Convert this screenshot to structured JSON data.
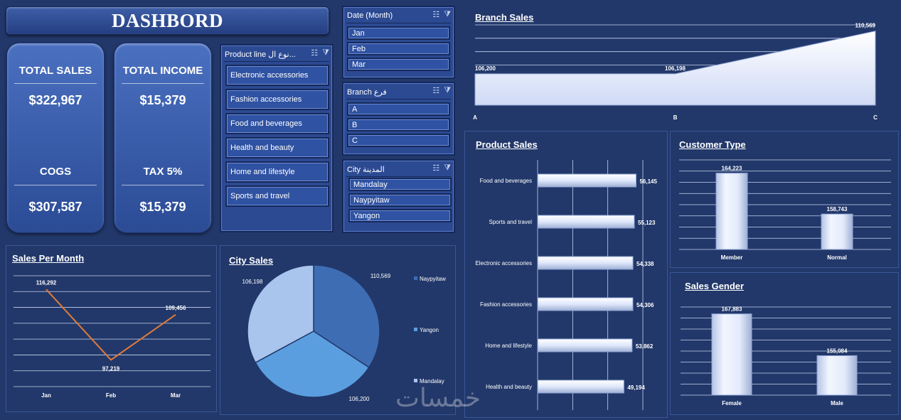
{
  "header": {
    "title": "DASHBORD"
  },
  "kpis": {
    "total_sales_label": "TOTAL SALES",
    "total_sales_value": "$322,967",
    "total_income_label": "TOTAL INCOME",
    "total_income_value": "$15,379",
    "cogs_label": "COGS",
    "cogs_value": "$307,587",
    "tax_label": "TAX 5%",
    "tax_value": "$15,379"
  },
  "slicers": {
    "product_line": {
      "header": "Product line نوع ال...",
      "items": [
        "Electronic accessories",
        "Fashion accessories",
        "Food and beverages",
        "Health and beauty",
        "Home and lifestyle",
        "Sports and travel"
      ]
    },
    "date": {
      "header": "Date (Month)",
      "items": [
        "Jan",
        "Feb",
        "Mar"
      ]
    },
    "branch": {
      "header": "Branch فرع",
      "items": [
        "A",
        "B",
        "C"
      ]
    },
    "city": {
      "header": "City المدينة",
      "items": [
        "Mandalay",
        "Naypyitaw",
        "Yangon"
      ]
    }
  },
  "icons": {
    "multiselect": "multi-select-icon",
    "clear_filter": "clear-filter-icon"
  },
  "colors": {
    "background": "#22386a",
    "bar_fill": "#dfe7fb",
    "line": "#e07b39",
    "pie_naypyitaw": "#3e6db4",
    "pie_yangon": "#5b9ee0",
    "pie_mandalay": "#a9c5ee"
  },
  "watermark": "خمسات",
  "chart_data": [
    {
      "id": "branch_sales",
      "type": "area",
      "title": "Branch Sales",
      "categories": [
        "A",
        "B",
        "C"
      ],
      "values": [
        106200,
        106198,
        110569
      ],
      "value_labels": [
        "106,200",
        "106,198",
        "110,569"
      ],
      "grid": true
    },
    {
      "id": "product_sales",
      "type": "bar",
      "orientation": "horizontal",
      "title": "Product Sales",
      "categories": [
        "Food and beverages",
        "Sports and travel",
        "Electronic accessories",
        "Fashion accessories",
        "Home and lifestyle",
        "Health and beauty"
      ],
      "values": [
        56145,
        55123,
        54338,
        54306,
        53862,
        49194
      ],
      "value_labels": [
        "56,145",
        "55,123",
        "54,338",
        "54,306",
        "53,862",
        "49,194"
      ],
      "grid": true
    },
    {
      "id": "customer_type",
      "type": "bar",
      "title": "Customer Type",
      "categories": [
        "Member",
        "Normal"
      ],
      "values": [
        164223,
        158743
      ],
      "value_labels": [
        "164,223",
        "158,743"
      ],
      "grid": true
    },
    {
      "id": "sales_per_month",
      "type": "line",
      "title": "Sales Per Month",
      "categories": [
        "Jan",
        "Feb",
        "Mar"
      ],
      "values": [
        116292,
        97219,
        109456
      ],
      "value_labels": [
        "116,292",
        "97,219",
        "109,456"
      ],
      "grid": true
    },
    {
      "id": "city_sales",
      "type": "pie",
      "title": "City Sales",
      "categories": [
        "Naypyitaw",
        "Yangon",
        "Mandalay"
      ],
      "values": [
        110569,
        106200,
        106198
      ],
      "value_labels": [
        "110,569",
        "106,200",
        "106,198"
      ],
      "legend": "right"
    },
    {
      "id": "sales_gender",
      "type": "bar",
      "title": "Sales Gender",
      "categories": [
        "Female",
        "Male"
      ],
      "values": [
        167883,
        155084
      ],
      "value_labels": [
        "167,883",
        "155,084"
      ],
      "grid": true
    }
  ]
}
